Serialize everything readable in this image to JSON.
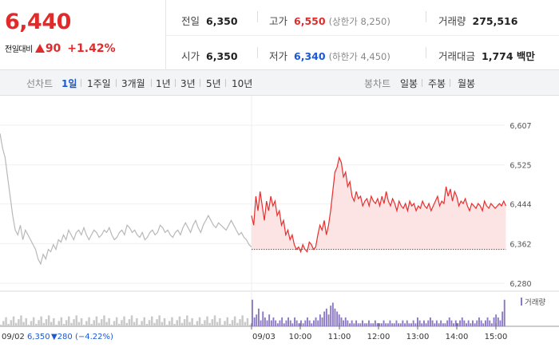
{
  "quote": {
    "price": "6,440",
    "change_label": "전일대비",
    "change_amount": "90",
    "change_percent": "+1.42%"
  },
  "stats": {
    "prev_close": {
      "label": "전일",
      "value": "6,350"
    },
    "high": {
      "label": "고가",
      "value": "6,550",
      "sub": "(상한가 8,250)"
    },
    "volume": {
      "label": "거래량",
      "value": "275,516"
    },
    "open": {
      "label": "시가",
      "value": "6,350"
    },
    "low": {
      "label": "저가",
      "value": "6,340",
      "sub": "(하한가 4,450)"
    },
    "turnover": {
      "label": "거래대금",
      "value": "1,774 백만"
    }
  },
  "period_tabs": {
    "label": "선차트",
    "items": [
      "1일",
      "1주일",
      "3개월",
      "1년",
      "3년",
      "5년",
      "10년"
    ],
    "active": 0
  },
  "candle_tabs": {
    "label": "봉차트",
    "items": [
      "일봉",
      "주봉",
      "월봉"
    ]
  },
  "chart_data": {
    "type": "line",
    "y_ticks": [
      "6,607",
      "6,525",
      "6,444",
      "6,362",
      "6,280"
    ],
    "y_tick_values": [
      6607,
      6525,
      6444,
      6362,
      6280
    ],
    "ylim": [
      6280,
      6607
    ],
    "x_ticks": [
      "09/03",
      "10:00",
      "11:00",
      "12:00",
      "13:00",
      "14:00",
      "15:00"
    ],
    "volume_legend": "거래량",
    "prev_day": {
      "date": "09/02",
      "close": "6,350",
      "change": "▼280 (−4.22%)",
      "series": [
        6590,
        6560,
        6540,
        6500,
        6460,
        6420,
        6390,
        6380,
        6400,
        6370,
        6390,
        6380,
        6370,
        6360,
        6350,
        6330,
        6320,
        6340,
        6330,
        6350,
        6345,
        6360,
        6350,
        6370,
        6365,
        6380,
        6370,
        6390,
        6380,
        6370,
        6385,
        6390,
        6380,
        6395,
        6380,
        6370,
        6380,
        6390,
        6385,
        6375,
        6380,
        6390,
        6385,
        6395,
        6380,
        6370,
        6375,
        6385,
        6390,
        6380,
        6400,
        6395,
        6385,
        6390,
        6380,
        6375,
        6385,
        6370,
        6375,
        6385,
        6390,
        6380,
        6385,
        6400,
        6395,
        6385,
        6390,
        6380,
        6375,
        6385,
        6390,
        6380,
        6395,
        6405,
        6395,
        6385,
        6400,
        6410,
        6395,
        6385,
        6400,
        6410,
        6420,
        6410,
        6400,
        6395,
        6405,
        6400,
        6395,
        6390,
        6400,
        6410,
        6400,
        6390,
        6380,
        6385,
        6375,
        6370,
        6360,
        6355
      ]
    },
    "today": {
      "base": 6350,
      "series": [
        6420,
        6400,
        6460,
        6430,
        6470,
        6440,
        6410,
        6450,
        6430,
        6460,
        6440,
        6450,
        6420,
        6430,
        6400,
        6410,
        6380,
        6390,
        6370,
        6380,
        6360,
        6350,
        6355,
        6345,
        6360,
        6350,
        6345,
        6365,
        6360,
        6350,
        6355,
        6380,
        6400,
        6390,
        6410,
        6380,
        6400,
        6430,
        6470,
        6510,
        6520,
        6540,
        6530,
        6500,
        6510,
        6480,
        6490,
        6460,
        6450,
        6470,
        6455,
        6460,
        6440,
        6450,
        6455,
        6440,
        6460,
        6450,
        6445,
        6455,
        6440,
        6460,
        6445,
        6470,
        6450,
        6440,
        6455,
        6445,
        6430,
        6450,
        6440,
        6435,
        6445,
        6430,
        6450,
        6440,
        6445,
        6430,
        6440,
        6435,
        6450,
        6440,
        6435,
        6445,
        6430,
        6440,
        6450,
        6460,
        6440,
        6450,
        6445,
        6480,
        6460,
        6475,
        6450,
        6470,
        6460,
        6440,
        6450,
        6445,
        6455,
        6440,
        6430,
        6445,
        6440,
        6435,
        6445,
        6440,
        6430,
        6450,
        6440,
        6435,
        6445,
        6440,
        6435,
        6440,
        6445,
        6440,
        6450,
        6440
      ],
      "volume_rel": [
        0.9,
        0.3,
        0.4,
        0.6,
        0.2,
        0.5,
        0.3,
        0.2,
        0.4,
        0.2,
        0.3,
        0.2,
        0.1,
        0.2,
        0.3,
        0.1,
        0.2,
        0.3,
        0.2,
        0.1,
        0.3,
        0.2,
        0.1,
        0.2,
        0.1,
        0.2,
        0.3,
        0.2,
        0.1,
        0.2,
        0.3,
        0.2,
        0.4,
        0.3,
        0.5,
        0.6,
        0.4,
        0.7,
        0.8,
        0.6,
        0.5,
        0.4,
        0.3,
        0.2,
        0.3,
        0.2,
        0.1,
        0.2,
        0.1,
        0.2,
        0.1,
        0.1,
        0.2,
        0.1,
        0.1,
        0.2,
        0.1,
        0.1,
        0.2,
        0.1,
        0.1,
        0.1,
        0.2,
        0.1,
        0.1,
        0.2,
        0.1,
        0.1,
        0.2,
        0.1,
        0.1,
        0.2,
        0.1,
        0.2,
        0.1,
        0.1,
        0.2,
        0.1,
        0.3,
        0.2,
        0.1,
        0.2,
        0.1,
        0.2,
        0.3,
        0.2,
        0.1,
        0.2,
        0.1,
        0.2,
        0.1,
        0.1,
        0.2,
        0.3,
        0.2,
        0.1,
        0.2,
        0.1,
        0.2,
        0.3,
        0.2,
        0.1,
        0.2,
        0.1,
        0.2,
        0.1,
        0.2,
        0.3,
        0.2,
        0.1,
        0.2,
        0.3,
        0.2,
        0.1,
        0.3,
        0.4,
        0.3,
        0.2,
        0.5,
        0.9
      ]
    }
  },
  "colors": {
    "up": "#e12b2b",
    "down": "#1a58d8",
    "prev_line": "#b8b8b8",
    "today_line": "#e52e2e",
    "area_fill": "#fde4e4",
    "volume_bar": "#8b79c4"
  }
}
